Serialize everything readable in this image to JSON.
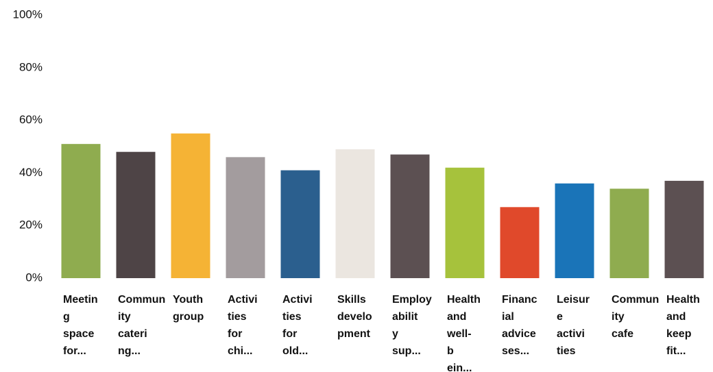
{
  "chart_data": {
    "type": "bar",
    "categories": [
      [
        "Meetin",
        "g",
        "space",
        "for..."
      ],
      [
        "Commun",
        "ity",
        "cateri",
        "ng..."
      ],
      [
        "Youth",
        "group"
      ],
      [
        "Activi",
        "ties",
        "for",
        "chi..."
      ],
      [
        "Activi",
        "ties",
        "for",
        "old..."
      ],
      [
        "Skills",
        "develo",
        "pment"
      ],
      [
        "Employ",
        "abilit",
        "y",
        "sup..."
      ],
      [
        "Health",
        "and",
        "well-",
        "b",
        "ein..."
      ],
      [
        "Financ",
        "ial",
        "advice",
        "ses..."
      ],
      [
        "Leisur",
        "e",
        "activi",
        "ties"
      ],
      [
        "Commun",
        "ity",
        "cafe"
      ],
      [
        "Health",
        "and",
        "keep",
        "fit..."
      ]
    ],
    "values": [
      51,
      48,
      55,
      46,
      41,
      49,
      47,
      42,
      27,
      36,
      34,
      37
    ],
    "colors": [
      "#8fac4f",
      "#4e4446",
      "#f5b335",
      "#a39c9e",
      "#2b5f8e",
      "#ebe6e0",
      "#5c5052",
      "#a6c23c",
      "#e0492b",
      "#1a74b8",
      "#8fac4f",
      "#5c5052"
    ],
    "ylim": [
      0,
      100
    ],
    "yticks": [
      {
        "value": 0,
        "label": "0%"
      },
      {
        "value": 20,
        "label": "20%"
      },
      {
        "value": 40,
        "label": "40%"
      },
      {
        "value": 60,
        "label": "60%"
      },
      {
        "value": 80,
        "label": "80%"
      },
      {
        "value": 100,
        "label": "100%"
      }
    ],
    "grid": false
  }
}
